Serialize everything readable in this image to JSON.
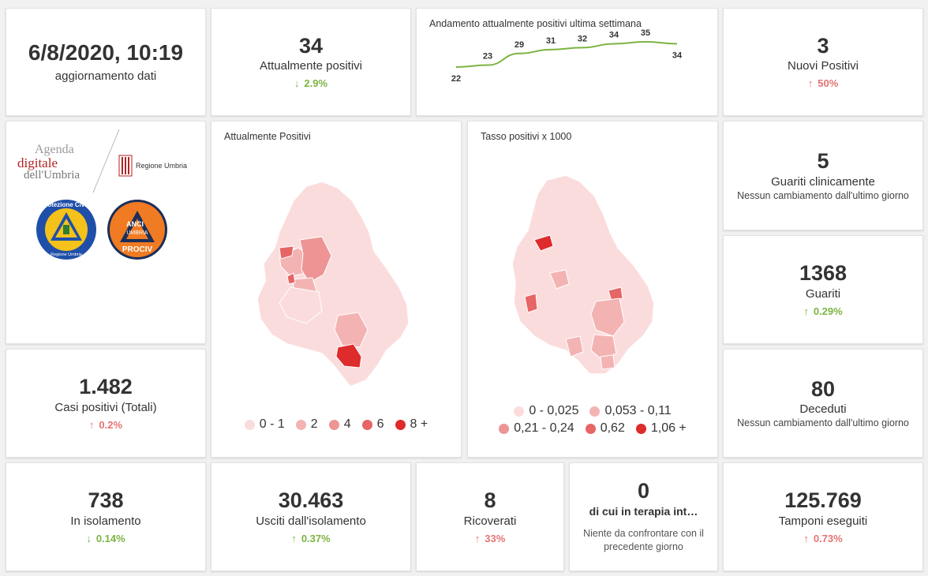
{
  "update": {
    "datetime": "6/8/2020, 10:19",
    "label": "aggiornamento dati"
  },
  "attualmente_positivi": {
    "value": "34",
    "label": "Attualmente positivi",
    "delta": "2.9%",
    "direction": "down"
  },
  "sparkline": {
    "title": "Andamento attualmente positivi ultima settimana",
    "values": [
      22,
      23,
      29,
      31,
      32,
      34,
      35,
      34
    ],
    "color": "#7cb342"
  },
  "nuovi_positivi": {
    "value": "3",
    "label": "Nuovi Positivi",
    "delta": "50%",
    "direction": "up"
  },
  "logos": {
    "agenda_line1": "Agenda",
    "agenda_line2": "digitale",
    "agenda_line3": "dell'Umbria",
    "regione": "Regione Umbria",
    "protezione_civile": "Protezione Civile",
    "protezione_sub": "Regione Umbria",
    "anci_line1": "ANCI",
    "anci_line2": "UMBRIA",
    "anci_line3": "PROCIV"
  },
  "map1": {
    "title": "Attualmente Positivi",
    "legend": [
      {
        "label": "0 - 1",
        "color": "#fbdcdc"
      },
      {
        "label": "2",
        "color": "#f4b3b3"
      },
      {
        "label": "4",
        "color": "#ee9494"
      },
      {
        "label": "6",
        "color": "#e66565"
      },
      {
        "label": "8 +",
        "color": "#de2b2b"
      }
    ]
  },
  "map2": {
    "title": "Tasso positivi x 1000",
    "legend_row1": [
      {
        "label": "0 - 0,025",
        "color": "#fbdcdc"
      },
      {
        "label": "0,053 - 0,11",
        "color": "#f4b3b3"
      }
    ],
    "legend_row2": [
      {
        "label": "0,21 - 0,24",
        "color": "#ee9494"
      },
      {
        "label": "0,62",
        "color": "#e66565"
      },
      {
        "label": "1,06 +",
        "color": "#de2b2b"
      }
    ]
  },
  "guariti_clinicamente": {
    "value": "5",
    "label": "Guariti clinicamente",
    "note": "Nessun cambiamento dall'ultimo giorno"
  },
  "guariti": {
    "value": "1368",
    "label": "Guariti",
    "delta": "0.29%",
    "direction": "up"
  },
  "casi_totali": {
    "value": "1.482",
    "label": "Casi positivi (Totali)",
    "delta": "0.2%",
    "direction": "up"
  },
  "deceduti": {
    "value": "80",
    "label": "Deceduti",
    "note": "Nessun cambiamento dall'ultimo giorno"
  },
  "isolamento": {
    "value": "738",
    "label": "In isolamento",
    "delta": "0.14%",
    "direction": "down"
  },
  "usciti": {
    "value": "30.463",
    "label": "Usciti dall'isolamento",
    "delta": "0.37%",
    "direction": "up"
  },
  "ricoverati": {
    "value": "8",
    "label": "Ricoverati",
    "delta": "33%",
    "direction": "up"
  },
  "terapia": {
    "value": "0",
    "label": "di cui in terapia int…",
    "note": "Niente da confrontare con il precedente giorno"
  },
  "tamponi": {
    "value": "125.769",
    "label": "Tamponi eseguiti",
    "delta": "0.73%",
    "direction": "up"
  }
}
